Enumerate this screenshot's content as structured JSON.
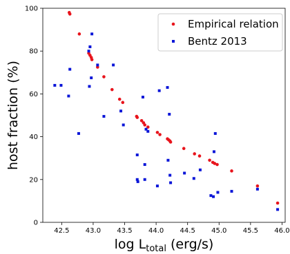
{
  "chart_data": {
    "type": "scatter",
    "xlabel": "log L",
    "xlabel_sub": "total",
    "xlabel_unit": " (erg/s)",
    "ylabel": "host fraction (%)",
    "xlim": [
      42.2,
      46.05
    ],
    "ylim": [
      0,
      100
    ],
    "x_ticks": [
      42.5,
      43.0,
      43.5,
      44.0,
      44.5,
      45.0,
      45.5,
      46.0
    ],
    "x_tick_labels": [
      "42.5",
      "43.0",
      "43.5",
      "44.0",
      "44.5",
      "45.0",
      "45.5",
      "46.0"
    ],
    "y_ticks": [
      0,
      20,
      40,
      60,
      80,
      100
    ],
    "y_tick_labels": [
      "0",
      "20",
      "40",
      "60",
      "80",
      "100"
    ],
    "grid": false,
    "legend_position": "top-right",
    "series": [
      {
        "name": "Empirical relation",
        "color": "#e8141c",
        "marker": "circle",
        "points": [
          [
            42.62,
            98.0
          ],
          [
            42.63,
            97.3
          ],
          [
            42.78,
            88.0
          ],
          [
            42.93,
            79.0
          ],
          [
            42.95,
            78.0
          ],
          [
            42.97,
            77.0
          ],
          [
            42.98,
            76.0
          ],
          [
            43.07,
            72.5
          ],
          [
            43.17,
            68.0
          ],
          [
            43.3,
            62.0
          ],
          [
            43.42,
            57.5
          ],
          [
            43.47,
            56.0
          ],
          [
            43.69,
            49.5
          ],
          [
            43.7,
            49.0
          ],
          [
            43.77,
            47.5
          ],
          [
            43.8,
            46.5
          ],
          [
            43.82,
            45.5
          ],
          [
            43.87,
            44.5
          ],
          [
            44.02,
            42.0
          ],
          [
            44.06,
            41.0
          ],
          [
            44.18,
            39.0
          ],
          [
            44.2,
            38.5
          ],
          [
            44.22,
            38.0
          ],
          [
            44.23,
            37.5
          ],
          [
            44.44,
            34.5
          ],
          [
            44.61,
            32.0
          ],
          [
            44.69,
            31.0
          ],
          [
            44.85,
            29.0
          ],
          [
            44.9,
            28.0
          ],
          [
            44.93,
            27.5
          ],
          [
            44.97,
            27.0
          ],
          [
            45.2,
            24.0
          ],
          [
            45.61,
            17.0
          ],
          [
            45.93,
            9.0
          ]
        ]
      },
      {
        "name": "Bentz 2013",
        "color": "#0a16d8",
        "marker": "square",
        "points": [
          [
            42.39,
            64.0
          ],
          [
            42.49,
            64.0
          ],
          [
            42.61,
            59.0
          ],
          [
            42.63,
            71.5
          ],
          [
            42.77,
            41.5
          ],
          [
            42.93,
            80.0
          ],
          [
            42.94,
            63.5
          ],
          [
            42.95,
            82.0
          ],
          [
            42.97,
            67.5
          ],
          [
            42.98,
            88.0
          ],
          [
            43.07,
            73.5
          ],
          [
            43.17,
            49.5
          ],
          [
            43.32,
            73.5
          ],
          [
            43.44,
            52.0
          ],
          [
            43.48,
            45.5
          ],
          [
            43.7,
            31.5
          ],
          [
            43.7,
            20.0
          ],
          [
            43.71,
            19.0
          ],
          [
            43.79,
            58.5
          ],
          [
            43.82,
            27.0
          ],
          [
            43.82,
            20.0
          ],
          [
            43.84,
            43.5
          ],
          [
            43.87,
            42.5
          ],
          [
            44.02,
            17.0
          ],
          [
            44.05,
            61.5
          ],
          [
            44.18,
            63.0
          ],
          [
            44.19,
            29.0
          ],
          [
            44.21,
            50.5
          ],
          [
            44.22,
            22.0
          ],
          [
            44.23,
            18.5
          ],
          [
            44.45,
            23.0
          ],
          [
            44.6,
            20.5
          ],
          [
            44.7,
            24.5
          ],
          [
            44.87,
            12.5
          ],
          [
            44.91,
            12.0
          ],
          [
            44.92,
            33.0
          ],
          [
            44.94,
            41.5
          ],
          [
            44.98,
            14.0
          ],
          [
            45.2,
            14.5
          ],
          [
            45.61,
            15.5
          ],
          [
            45.93,
            6.0
          ]
        ]
      }
    ]
  }
}
